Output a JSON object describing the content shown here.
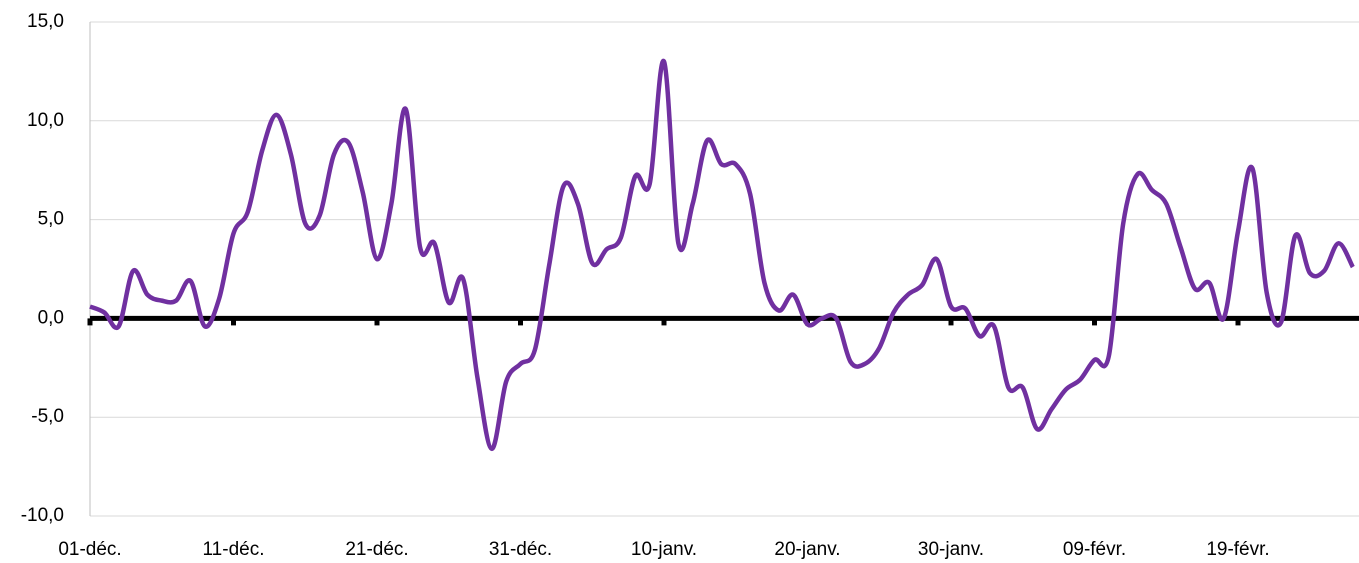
{
  "chart_data": {
    "type": "line",
    "categories": [
      "01-déc.",
      null,
      null,
      null,
      null,
      null,
      null,
      null,
      null,
      null,
      "11-déc.",
      null,
      null,
      null,
      null,
      null,
      null,
      null,
      null,
      null,
      "21-déc.",
      null,
      null,
      null,
      null,
      null,
      null,
      null,
      null,
      null,
      "31-déc.",
      null,
      null,
      null,
      null,
      null,
      null,
      null,
      null,
      null,
      "10-janv.",
      null,
      null,
      null,
      null,
      null,
      null,
      null,
      null,
      null,
      "20-janv.",
      null,
      null,
      null,
      null,
      null,
      null,
      null,
      null,
      null,
      "30-janv.",
      null,
      null,
      null,
      null,
      null,
      null,
      null,
      null,
      null,
      "09-févr.",
      null,
      null,
      null,
      null,
      null,
      null,
      null,
      null,
      null,
      "19-févr.",
      null,
      null,
      null,
      null,
      null,
      null,
      null,
      null
    ],
    "series": [
      {
        "color": "#7030a0",
        "values": [
          0.6,
          0.3,
          -0.4,
          2.4,
          1.2,
          0.9,
          0.9,
          1.9,
          -0.4,
          1.0,
          4.3,
          5.4,
          8.5,
          10.3,
          8.3,
          4.8,
          5.2,
          8.3,
          8.9,
          6.4,
          3.0,
          5.8,
          10.6,
          3.6,
          3.8,
          0.8,
          2.0,
          -3.0,
          -6.6,
          -3.2,
          -2.3,
          -1.6,
          2.7,
          6.7,
          5.8,
          2.8,
          3.5,
          4.1,
          7.2,
          6.8,
          13.0,
          3.8,
          5.8,
          9.0,
          7.8,
          7.8,
          6.3,
          1.8,
          0.4,
          1.2,
          -0.3,
          0.0,
          0.0,
          -2.2,
          -2.3,
          -1.5,
          0.3,
          1.2,
          1.7,
          3.0,
          0.6,
          0.5,
          -0.9,
          -0.4,
          -3.5,
          -3.5,
          -5.6,
          -4.6,
          -3.6,
          -3.1,
          -2.1,
          -1.9,
          4.8,
          7.3,
          6.5,
          5.8,
          3.6,
          1.5,
          1.8,
          0.0,
          4.4,
          7.6,
          1.3,
          -0.2,
          4.2,
          2.3,
          2.4,
          3.8,
          2.6
        ]
      }
    ],
    "ylim": [
      -10,
      15
    ],
    "yticks": [
      {
        "value": -10,
        "label": "-10,0"
      },
      {
        "value": -5,
        "label": "-5,0"
      },
      {
        "value": 0,
        "label": "0,0"
      },
      {
        "value": 5,
        "label": "5,0"
      },
      {
        "value": 10,
        "label": "10,0"
      },
      {
        "value": 15,
        "label": "15,0"
      }
    ],
    "grid": true
  }
}
